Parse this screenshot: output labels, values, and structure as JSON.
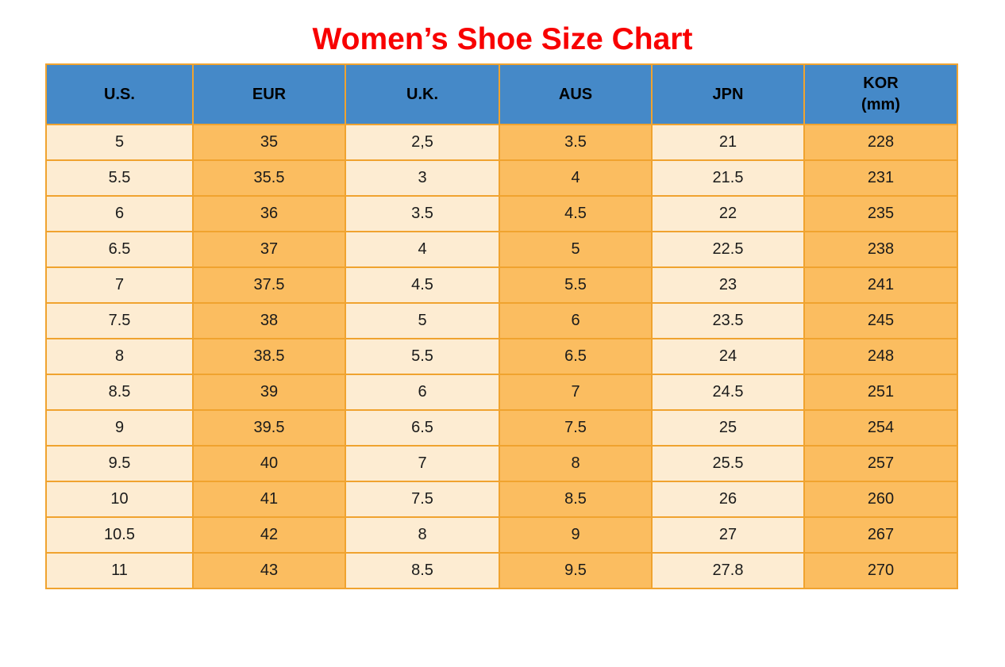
{
  "page_title": "Women’s Shoe Size Chart",
  "colors": {
    "title_red": "#F80000",
    "header_blue": "#4589C8",
    "cell_cream": "#FDECD2",
    "cell_orange": "#FBBD60",
    "grid_orange": "#F0A32F",
    "text_black": "#1B1B1B"
  },
  "table": {
    "header": [
      {
        "label": "U.S.",
        "sublabel": ""
      },
      {
        "label": "EUR",
        "sublabel": ""
      },
      {
        "label": "U.K.",
        "sublabel": ""
      },
      {
        "label": "AUS",
        "sublabel": ""
      },
      {
        "label": "JPN",
        "sublabel": ""
      },
      {
        "label": "KOR",
        "sublabel": "(mm)"
      }
    ]
  },
  "chart_data": {
    "type": "table",
    "title": "Women’s Shoe Size Chart",
    "columns": [
      "U.S.",
      "EUR",
      "U.K.",
      "AUS",
      "JPN",
      "KOR (mm)"
    ],
    "rows": [
      [
        "5",
        "35",
        "2,5",
        "3.5",
        "21",
        "228"
      ],
      [
        "5.5",
        "35.5",
        "3",
        "4",
        "21.5",
        "231"
      ],
      [
        "6",
        "36",
        "3.5",
        "4.5",
        "22",
        "235"
      ],
      [
        "6.5",
        "37",
        "4",
        "5",
        "22.5",
        "238"
      ],
      [
        "7",
        "37.5",
        "4.5",
        "5.5",
        "23",
        "241"
      ],
      [
        "7.5",
        "38",
        "5",
        "6",
        "23.5",
        "245"
      ],
      [
        "8",
        "38.5",
        "5.5",
        "6.5",
        "24",
        "248"
      ],
      [
        "8.5",
        "39",
        "6",
        "7",
        "24.5",
        "251"
      ],
      [
        "9",
        "39.5",
        "6.5",
        "7.5",
        "25",
        "254"
      ],
      [
        "9.5",
        "40",
        "7",
        "8",
        "25.5",
        "257"
      ],
      [
        "10",
        "41",
        "7.5",
        "8.5",
        "26",
        "260"
      ],
      [
        "10.5",
        "42",
        "8",
        "9",
        "27",
        "267"
      ],
      [
        "11",
        "43",
        "8.5",
        "9.5",
        "27.8",
        "270"
      ]
    ],
    "layout_hints": {
      "header_background": "blue",
      "column_fill_pattern": [
        "cream",
        "orange",
        "cream",
        "orange",
        "cream",
        "orange"
      ],
      "grid": true
    }
  }
}
